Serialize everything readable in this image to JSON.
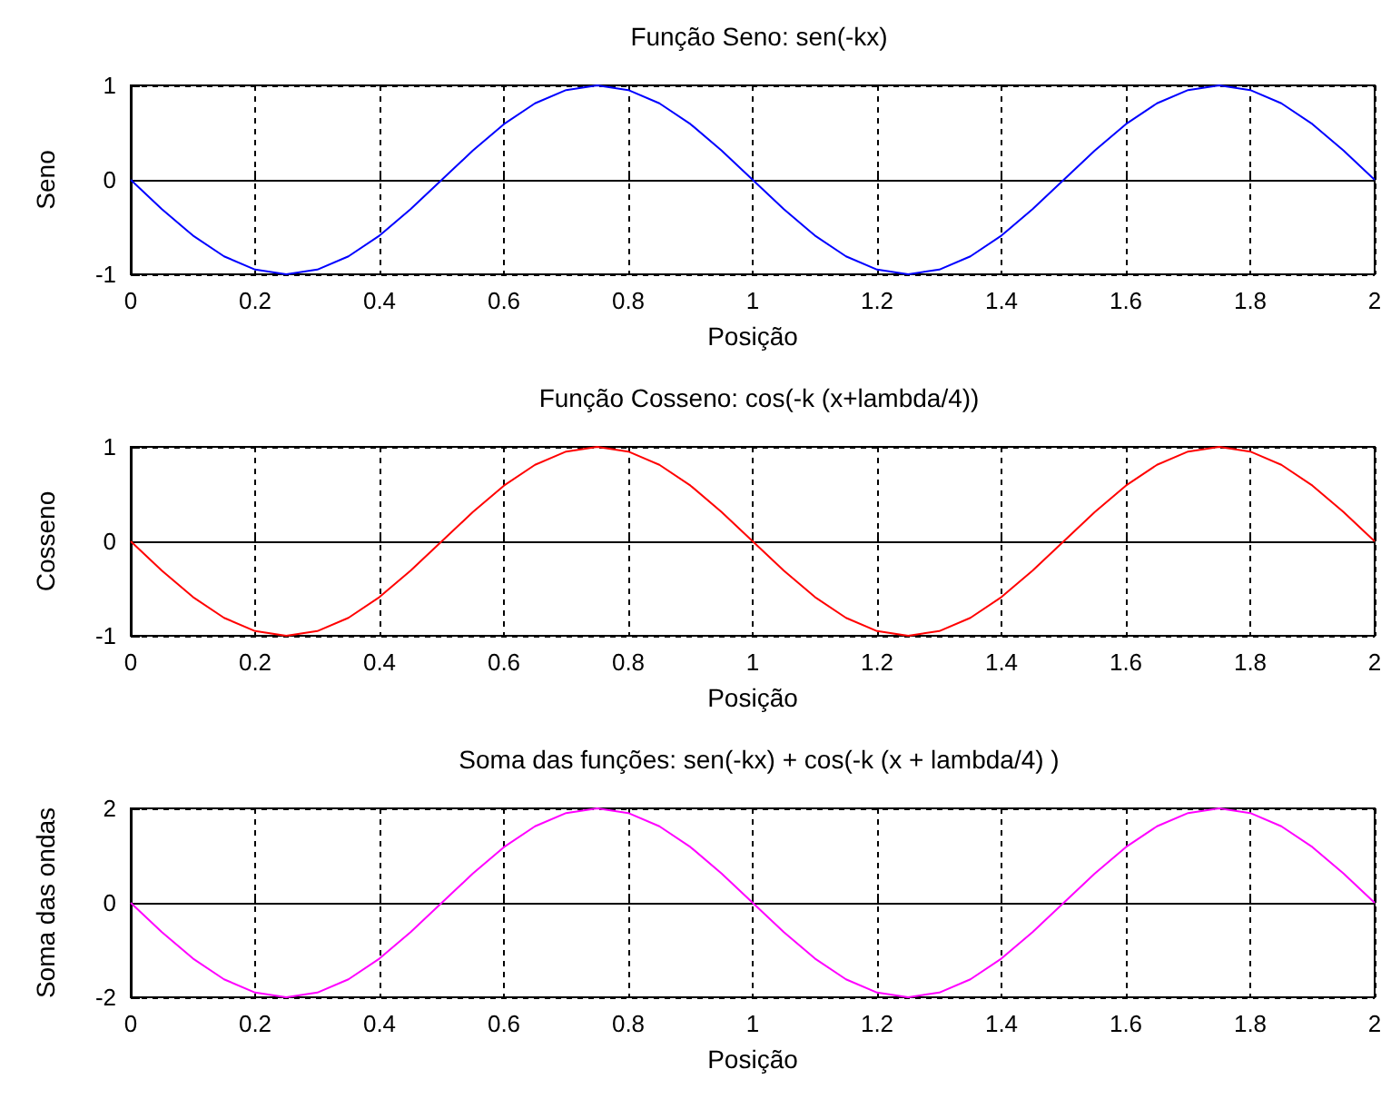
{
  "chart_data": [
    {
      "type": "line",
      "title": "Função Seno: sen(-kx)",
      "xlabel": "Posição",
      "ylabel": "Seno",
      "x": [
        0,
        0.05,
        0.1,
        0.15,
        0.2,
        0.25,
        0.3,
        0.35,
        0.4,
        0.45,
        0.5,
        0.55,
        0.6,
        0.65,
        0.7,
        0.75,
        0.8,
        0.85,
        0.9,
        0.95,
        1,
        1.05,
        1.1,
        1.15,
        1.2,
        1.25,
        1.3,
        1.35,
        1.4,
        1.45,
        1.5,
        1.55,
        1.6,
        1.65,
        1.7,
        1.75,
        1.8,
        1.85,
        1.9,
        1.95,
        2
      ],
      "series": [
        {
          "color": "#0000ff",
          "values": [
            0,
            -0.31,
            -0.59,
            -0.81,
            -0.95,
            -1,
            -0.95,
            -0.81,
            -0.59,
            -0.31,
            0,
            0.31,
            0.59,
            0.81,
            0.95,
            1,
            0.95,
            0.81,
            0.59,
            0.31,
            0,
            -0.31,
            -0.59,
            -0.81,
            -0.95,
            -1,
            -0.95,
            -0.81,
            -0.59,
            -0.31,
            0,
            0.31,
            0.59,
            0.81,
            0.95,
            1,
            0.95,
            0.81,
            0.59,
            0.31,
            0
          ]
        }
      ],
      "xlim": [
        0,
        2
      ],
      "xticks": [
        0,
        0.2,
        0.4,
        0.6,
        0.8,
        1,
        1.2,
        1.4,
        1.6,
        1.8,
        2
      ],
      "ylim": [
        -1,
        1
      ],
      "yticks": [
        -1,
        0,
        1
      ],
      "grid": true
    },
    {
      "type": "line",
      "title": "Função Cosseno: cos(-k (x+lambda/4))",
      "xlabel": "Posição",
      "ylabel": "Cosseno",
      "x": [
        0,
        0.05,
        0.1,
        0.15,
        0.2,
        0.25,
        0.3,
        0.35,
        0.4,
        0.45,
        0.5,
        0.55,
        0.6,
        0.65,
        0.7,
        0.75,
        0.8,
        0.85,
        0.9,
        0.95,
        1,
        1.05,
        1.1,
        1.15,
        1.2,
        1.25,
        1.3,
        1.35,
        1.4,
        1.45,
        1.5,
        1.55,
        1.6,
        1.65,
        1.7,
        1.75,
        1.8,
        1.85,
        1.9,
        1.95,
        2
      ],
      "series": [
        {
          "color": "#ff0000",
          "values": [
            0,
            -0.31,
            -0.59,
            -0.81,
            -0.95,
            -1,
            -0.95,
            -0.81,
            -0.59,
            -0.31,
            0,
            0.31,
            0.59,
            0.81,
            0.95,
            1,
            0.95,
            0.81,
            0.59,
            0.31,
            0,
            -0.31,
            -0.59,
            -0.81,
            -0.95,
            -1,
            -0.95,
            -0.81,
            -0.59,
            -0.31,
            0,
            0.31,
            0.59,
            0.81,
            0.95,
            1,
            0.95,
            0.81,
            0.59,
            0.31,
            0
          ]
        }
      ],
      "xlim": [
        0,
        2
      ],
      "xticks": [
        0,
        0.2,
        0.4,
        0.6,
        0.8,
        1,
        1.2,
        1.4,
        1.6,
        1.8,
        2
      ],
      "ylim": [
        -1,
        1
      ],
      "yticks": [
        -1,
        0,
        1
      ],
      "grid": true
    },
    {
      "type": "line",
      "title": "Soma das funções: sen(-kx) + cos(-k (x + lambda/4) )",
      "xlabel": "Posição",
      "ylabel": "Soma das ondas",
      "x": [
        0,
        0.05,
        0.1,
        0.15,
        0.2,
        0.25,
        0.3,
        0.35,
        0.4,
        0.45,
        0.5,
        0.55,
        0.6,
        0.65,
        0.7,
        0.75,
        0.8,
        0.85,
        0.9,
        0.95,
        1,
        1.05,
        1.1,
        1.15,
        1.2,
        1.25,
        1.3,
        1.35,
        1.4,
        1.45,
        1.5,
        1.55,
        1.6,
        1.65,
        1.7,
        1.75,
        1.8,
        1.85,
        1.9,
        1.95,
        2
      ],
      "series": [
        {
          "color": "#ff00ff",
          "values": [
            0,
            -0.62,
            -1.18,
            -1.62,
            -1.9,
            -2,
            -1.9,
            -1.62,
            -1.18,
            -0.62,
            0,
            0.62,
            1.18,
            1.62,
            1.9,
            2,
            1.9,
            1.62,
            1.18,
            0.62,
            0,
            -0.62,
            -1.18,
            -1.62,
            -1.9,
            -2,
            -1.9,
            -1.62,
            -1.18,
            -0.62,
            0,
            0.62,
            1.18,
            1.62,
            1.9,
            2,
            1.9,
            1.62,
            1.18,
            0.62,
            0
          ]
        }
      ],
      "xlim": [
        0,
        2
      ],
      "xticks": [
        0,
        0.2,
        0.4,
        0.6,
        0.8,
        1,
        1.2,
        1.4,
        1.6,
        1.8,
        2
      ],
      "ylim": [
        -2,
        2
      ],
      "yticks": [
        -2,
        0,
        2
      ],
      "grid": true
    }
  ]
}
